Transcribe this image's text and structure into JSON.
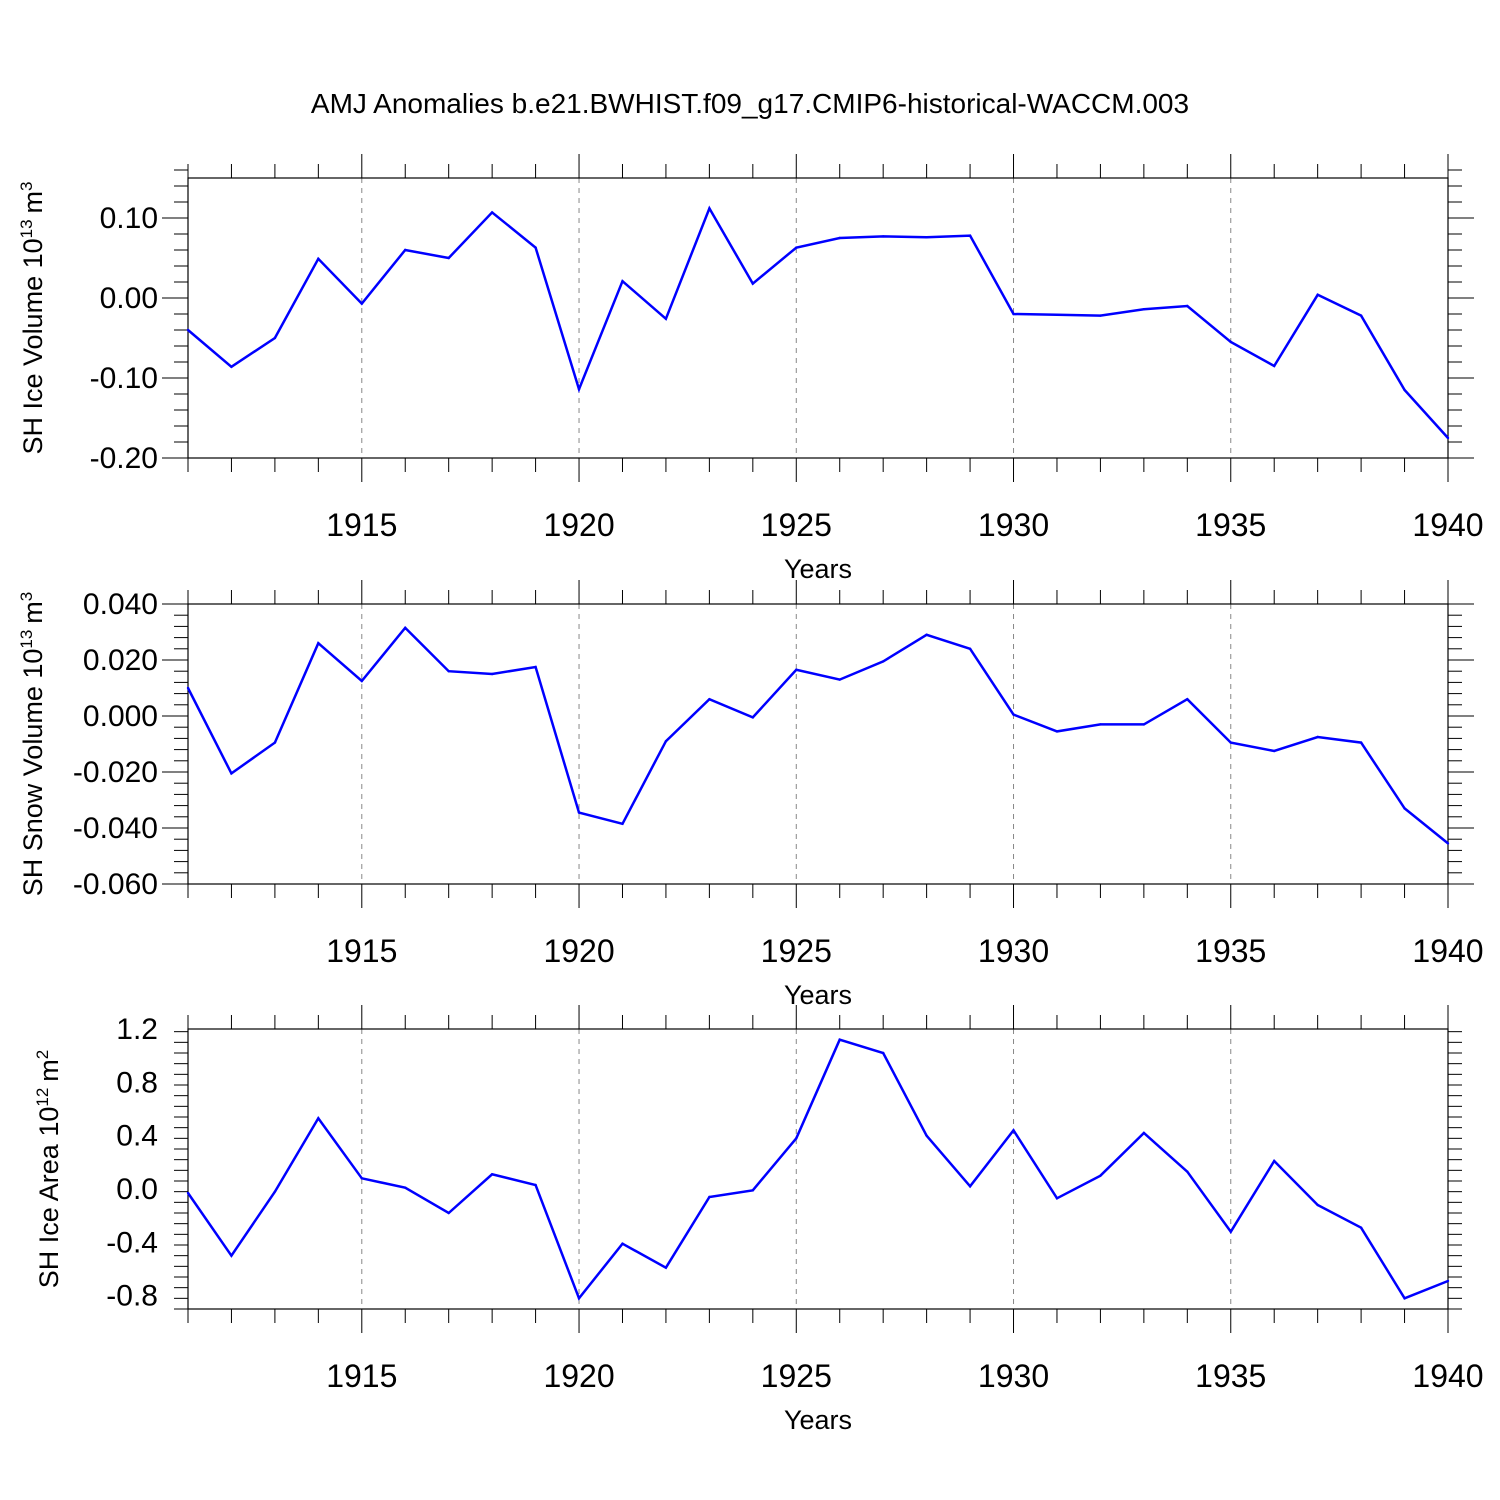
{
  "figure": {
    "title": "AMJ Anomalies b.e21.BWHIST.f09_g17.CMIP6-historical-WACCM.003",
    "line_color": "#0000ff",
    "grid_color": "#888888"
  },
  "chart_data": [
    {
      "type": "line",
      "title": "",
      "xlabel": "Years",
      "ylabel": "SH Ice Volume 10",
      "ylabel_exp": "13",
      "ylabel_unit": "m",
      "ylabel_unit_exp": "3",
      "xlim": [
        1911,
        1940
      ],
      "ylim": [
        -0.2,
        0.15
      ],
      "xticks": [
        1915,
        1920,
        1925,
        1930,
        1935,
        1940
      ],
      "yticks": [
        -0.2,
        -0.1,
        0.0,
        0.1
      ],
      "ytick_labels": [
        "-0.20",
        "-0.10",
        "0.00",
        "0.10"
      ],
      "x": [
        1911,
        1912,
        1913,
        1914,
        1915,
        1916,
        1917,
        1918,
        1919,
        1920,
        1921,
        1922,
        1923,
        1924,
        1925,
        1926,
        1927,
        1928,
        1929,
        1930,
        1931,
        1932,
        1933,
        1934,
        1935,
        1936,
        1937,
        1938,
        1939,
        1940
      ],
      "values": [
        -0.04,
        -0.086,
        -0.05,
        0.049,
        -0.007,
        0.06,
        0.05,
        0.107,
        0.063,
        -0.114,
        0.021,
        -0.026,
        0.112,
        0.018,
        0.063,
        0.075,
        0.077,
        0.076,
        0.078,
        -0.02,
        -0.021,
        -0.022,
        -0.014,
        -0.01,
        -0.055,
        -0.085,
        0.004,
        -0.022,
        -0.115,
        -0.175
      ]
    },
    {
      "type": "line",
      "title": "",
      "xlabel": "Years",
      "ylabel": "SH Snow Volume 10",
      "ylabel_exp": "13",
      "ylabel_unit": "m",
      "ylabel_unit_exp": "3",
      "xlim": [
        1911,
        1940
      ],
      "ylim": [
        -0.06,
        0.04
      ],
      "xticks": [
        1915,
        1920,
        1925,
        1930,
        1935,
        1940
      ],
      "yticks": [
        -0.06,
        -0.04,
        -0.02,
        0.0,
        0.02,
        0.04
      ],
      "ytick_labels": [
        "-0.060",
        "-0.040",
        "-0.020",
        "0.000",
        "0.020",
        "0.040"
      ],
      "x": [
        1911,
        1912,
        1913,
        1914,
        1915,
        1916,
        1917,
        1918,
        1919,
        1920,
        1921,
        1922,
        1923,
        1924,
        1925,
        1926,
        1927,
        1928,
        1929,
        1930,
        1931,
        1932,
        1933,
        1934,
        1935,
        1936,
        1937,
        1938,
        1939,
        1940
      ],
      "values": [
        0.01,
        -0.0205,
        -0.0095,
        0.026,
        0.0125,
        0.0315,
        0.016,
        0.015,
        0.0175,
        -0.0345,
        -0.0385,
        -0.009,
        0.006,
        -0.0005,
        0.0165,
        0.013,
        0.0195,
        0.029,
        0.024,
        0.0005,
        -0.0055,
        -0.003,
        -0.003,
        0.006,
        -0.0095,
        -0.0125,
        -0.0075,
        -0.0095,
        -0.033,
        -0.0455
      ]
    },
    {
      "type": "line",
      "title": "",
      "xlabel": "Years",
      "ylabel": "SH Ice Area 10",
      "ylabel_exp": "12",
      "ylabel_unit": "m",
      "ylabel_unit_exp": "2",
      "xlim": [
        1911,
        1940
      ],
      "ylim": [
        -0.9,
        1.2
      ],
      "xticks": [
        1915,
        1920,
        1925,
        1930,
        1935,
        1940
      ],
      "yticks": [
        -0.8,
        -0.4,
        0.0,
        0.4,
        0.8,
        1.2
      ],
      "ytick_labels": [
        "-0.8",
        "-0.4",
        "0.0",
        "0.4",
        "0.8",
        "1.2"
      ],
      "x": [
        1911,
        1912,
        1913,
        1914,
        1915,
        1916,
        1917,
        1918,
        1919,
        1920,
        1921,
        1922,
        1923,
        1924,
        1925,
        1926,
        1927,
        1928,
        1929,
        1930,
        1931,
        1932,
        1933,
        1934,
        1935,
        1936,
        1937,
        1938,
        1939,
        1940
      ],
      "values": [
        -0.03,
        -0.5,
        -0.02,
        0.53,
        0.08,
        0.01,
        -0.18,
        0.11,
        0.03,
        -0.82,
        -0.41,
        -0.59,
        -0.06,
        -0.01,
        0.38,
        1.12,
        1.02,
        0.4,
        0.02,
        0.44,
        -0.07,
        0.1,
        0.42,
        0.13,
        -0.32,
        0.21,
        -0.12,
        -0.29,
        -0.82,
        -0.69
      ]
    }
  ]
}
